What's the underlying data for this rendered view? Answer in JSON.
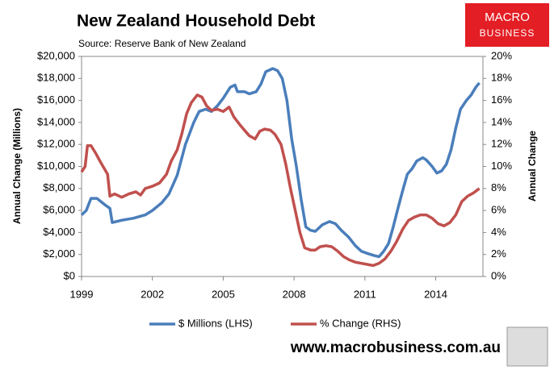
{
  "chart_data": {
    "type": "line",
    "title": "New Zealand Household Debt",
    "subtitle": "Source: Reserve Bank of New Zealand",
    "y_label": "Annual Change (Millions)",
    "y2_label": "Annual Change",
    "logo": [
      "MACRO",
      "BUSINESS"
    ],
    "website": "www.macrobusiness.com.au",
    "xlim": [
      1999,
      2016
    ],
    "xticks": [
      1999,
      2002,
      2005,
      2008,
      2011,
      2014
    ],
    "ylim": [
      0,
      20000
    ],
    "yticks": [
      {
        "value": 0,
        "label": "$0"
      },
      {
        "value": 2000,
        "label": "$2,000"
      },
      {
        "value": 4000,
        "label": "$4,000"
      },
      {
        "value": 6000,
        "label": "$6,000"
      },
      {
        "value": 8000,
        "label": "$8,000"
      },
      {
        "value": 10000,
        "label": "$10,000"
      },
      {
        "value": 12000,
        "label": "$12,000"
      },
      {
        "value": 14000,
        "label": "$14,000"
      },
      {
        "value": 16000,
        "label": "$16,000"
      },
      {
        "value": 18000,
        "label": "$18,000"
      },
      {
        "value": 20000,
        "label": "$20,000"
      }
    ],
    "y2lim": [
      0,
      20
    ],
    "y2ticks": [
      {
        "value": 0,
        "label": "0%"
      },
      {
        "value": 2,
        "label": "2%"
      },
      {
        "value": 4,
        "label": "4%"
      },
      {
        "value": 6,
        "label": "6%"
      },
      {
        "value": 8,
        "label": "8%"
      },
      {
        "value": 10,
        "label": "10%"
      },
      {
        "value": 12,
        "label": "12%"
      },
      {
        "value": 14,
        "label": "14%"
      },
      {
        "value": 16,
        "label": "16%"
      },
      {
        "value": 18,
        "label": "18%"
      },
      {
        "value": 20,
        "label": "20%"
      }
    ],
    "series": [
      {
        "name": "$ Millions (LHS)",
        "color": "#4a7ebb",
        "x": [
          1999.0,
          1999.2,
          1999.4,
          1999.65,
          2000.0,
          2000.2,
          2000.3,
          2000.67,
          2001.2,
          2001.7,
          2002.0,
          2002.4,
          2002.7,
          2003.05,
          2003.4,
          2003.75,
          2003.98,
          2004.25,
          2004.5,
          2004.75,
          2005.0,
          2005.3,
          2005.5,
          2005.6,
          2005.9,
          2006.1,
          2006.4,
          2006.6,
          2006.8,
          2007.1,
          2007.3,
          2007.5,
          2007.7,
          2007.9,
          2008.1,
          2008.3,
          2008.5,
          2008.7,
          2008.9,
          2009.2,
          2009.5,
          2009.75,
          2010.0,
          2010.3,
          2010.6,
          2010.85,
          2011.1,
          2011.4,
          2011.6,
          2011.8,
          2012.0,
          2012.2,
          2012.4,
          2012.6,
          2012.8,
          2013.0,
          2013.2,
          2013.45,
          2013.6,
          2013.85,
          2014.05,
          2014.25,
          2014.45,
          2014.65,
          2014.85,
          2015.05,
          2015.3,
          2015.5,
          2015.7,
          2015.85
        ],
        "values": [
          5600,
          6000,
          7100,
          7100,
          6500,
          6200,
          4900,
          5100,
          5300,
          5600,
          6000,
          6700,
          7500,
          9200,
          12000,
          14000,
          15000,
          15200,
          15000,
          15500,
          16200,
          17200,
          17400,
          16800,
          16800,
          16600,
          16800,
          17500,
          18600,
          18900,
          18700,
          18000,
          16000,
          12500,
          10000,
          7000,
          4500,
          4200,
          4100,
          4700,
          5000,
          4800,
          4200,
          3600,
          2800,
          2300,
          2100,
          1900,
          1800,
          2300,
          3000,
          4500,
          6200,
          7800,
          9300,
          9800,
          10500,
          10800,
          10600,
          10000,
          9400,
          9600,
          10200,
          11500,
          13500,
          15200,
          16000,
          16500,
          17200,
          17600
        ]
      },
      {
        "name": "% Change (RHS)",
        "color": "#c0504d",
        "axis": "y2",
        "x": [
          1999.0,
          1999.15,
          1999.25,
          1999.4,
          1999.6,
          1999.8,
          2000.1,
          2000.2,
          2000.4,
          2000.7,
          2001.0,
          2001.3,
          2001.5,
          2001.7,
          2002.0,
          2002.3,
          2002.6,
          2002.8,
          2003.05,
          2003.25,
          2003.45,
          2003.65,
          2003.9,
          2004.1,
          2004.3,
          2004.5,
          2004.75,
          2005.0,
          2005.25,
          2005.45,
          2005.7,
          2005.9,
          2006.1,
          2006.35,
          2006.55,
          2006.75,
          2007.0,
          2007.2,
          2007.45,
          2007.65,
          2007.85,
          2008.05,
          2008.25,
          2008.45,
          2008.7,
          2008.9,
          2009.1,
          2009.35,
          2009.6,
          2009.85,
          2010.1,
          2010.35,
          2010.6,
          2010.85,
          2011.1,
          2011.35,
          2011.6,
          2011.85,
          2012.1,
          2012.35,
          2012.6,
          2012.85,
          2013.1,
          2013.35,
          2013.6,
          2013.85,
          2014.1,
          2014.35,
          2014.6,
          2014.85,
          2015.1,
          2015.35,
          2015.6,
          2015.85
        ],
        "values": [
          9.5,
          10,
          11.9,
          11.9,
          11.2,
          10.4,
          9.3,
          7.3,
          7.5,
          7.2,
          7.5,
          7.7,
          7.4,
          8.0,
          8.2,
          8.5,
          9.3,
          10.5,
          11.5,
          13,
          14.8,
          15.8,
          16.5,
          16.3,
          15.5,
          15.1,
          15.2,
          15.0,
          15.4,
          14.5,
          13.8,
          13.3,
          12.8,
          12.5,
          13.2,
          13.4,
          13.3,
          12.9,
          12.0,
          10.2,
          8.0,
          6.0,
          4.0,
          2.6,
          2.4,
          2.4,
          2.7,
          2.8,
          2.7,
          2.3,
          1.8,
          1.5,
          1.3,
          1.2,
          1.1,
          1.0,
          1.2,
          1.6,
          2.3,
          3.2,
          4.3,
          5.1,
          5.4,
          5.6,
          5.6,
          5.3,
          4.8,
          4.6,
          4.9,
          5.6,
          6.8,
          7.3,
          7.6,
          8.0
        ]
      }
    ]
  }
}
